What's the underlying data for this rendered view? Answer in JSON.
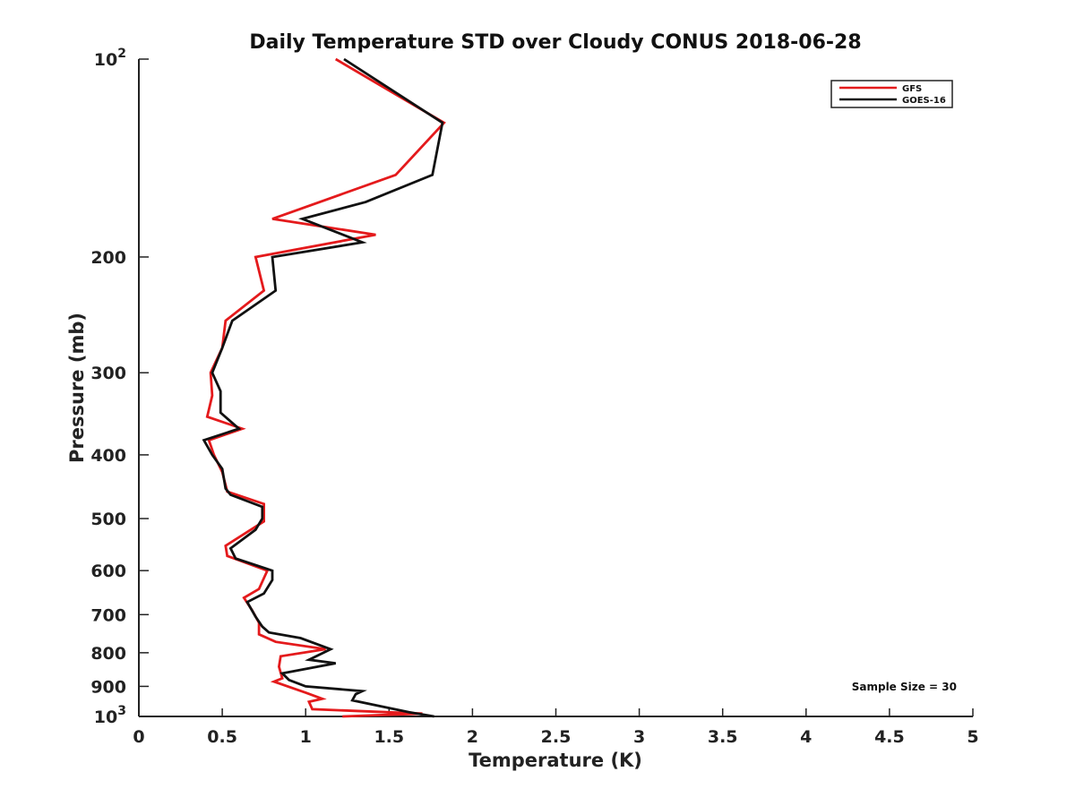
{
  "chart_data": {
    "type": "line",
    "title": "Daily Temperature STD over Cloudy CONUS 2018-06-28",
    "xlabel": "Temperature (K)",
    "ylabel": "Pressure (mb)",
    "xlim": [
      0,
      5
    ],
    "ylim": [
      100,
      1000
    ],
    "y_scale": "log",
    "y_reversed": true,
    "grid": false,
    "legend_position": "top-right",
    "x_ticks": [
      "0",
      "0.5",
      "1",
      "1.5",
      "2",
      "2.5",
      "3",
      "3.5",
      "4",
      "4.5",
      "5"
    ],
    "y_ticks": [
      {
        "value": 100,
        "base": "10",
        "exp": "2"
      },
      {
        "value": 200,
        "label": "200"
      },
      {
        "value": 300,
        "label": "300"
      },
      {
        "value": 400,
        "label": "400"
      },
      {
        "value": 500,
        "label": "500"
      },
      {
        "value": 600,
        "label": "600"
      },
      {
        "value": 700,
        "label": "700"
      },
      {
        "value": 800,
        "label": "800"
      },
      {
        "value": 900,
        "label": "900"
      },
      {
        "value": 1000,
        "base": "10",
        "exp": "3"
      }
    ],
    "annotation": "Sample Size = 30",
    "series": [
      {
        "name": "GFS",
        "color": "#e41a1c",
        "points": [
          [
            1.18,
            100
          ],
          [
            1.83,
            125
          ],
          [
            1.54,
            150
          ],
          [
            0.8,
            175
          ],
          [
            1.42,
            185
          ],
          [
            0.7,
            200
          ],
          [
            0.75,
            225
          ],
          [
            0.52,
            250
          ],
          [
            0.5,
            275
          ],
          [
            0.43,
            300
          ],
          [
            0.44,
            325
          ],
          [
            0.41,
            350
          ],
          [
            0.62,
            365
          ],
          [
            0.42,
            380
          ],
          [
            0.45,
            400
          ],
          [
            0.5,
            425
          ],
          [
            0.53,
            455
          ],
          [
            0.75,
            475
          ],
          [
            0.75,
            505
          ],
          [
            0.52,
            550
          ],
          [
            0.53,
            570
          ],
          [
            0.77,
            600
          ],
          [
            0.72,
            640
          ],
          [
            0.63,
            660
          ],
          [
            0.68,
            690
          ],
          [
            0.72,
            720
          ],
          [
            0.72,
            750
          ],
          [
            0.82,
            770
          ],
          [
            1.12,
            790
          ],
          [
            0.85,
            810
          ],
          [
            0.84,
            840
          ],
          [
            0.86,
            875
          ],
          [
            0.81,
            885
          ],
          [
            1.0,
            920
          ],
          [
            1.1,
            940
          ],
          [
            1.02,
            950
          ],
          [
            1.04,
            975
          ],
          [
            1.7,
            990
          ],
          [
            1.22,
            1000
          ]
        ]
      },
      {
        "name": "GOES-16",
        "color": "#111111",
        "points": [
          [
            1.23,
            100
          ],
          [
            1.82,
            125
          ],
          [
            1.76,
            150
          ],
          [
            1.36,
            165
          ],
          [
            0.98,
            175
          ],
          [
            1.34,
            190
          ],
          [
            0.8,
            200
          ],
          [
            0.82,
            225
          ],
          [
            0.56,
            250
          ],
          [
            0.5,
            275
          ],
          [
            0.44,
            300
          ],
          [
            0.49,
            320
          ],
          [
            0.49,
            345
          ],
          [
            0.6,
            365
          ],
          [
            0.39,
            380
          ],
          [
            0.44,
            400
          ],
          [
            0.5,
            420
          ],
          [
            0.52,
            450
          ],
          [
            0.55,
            460
          ],
          [
            0.74,
            480
          ],
          [
            0.74,
            500
          ],
          [
            0.7,
            520
          ],
          [
            0.55,
            555
          ],
          [
            0.58,
            575
          ],
          [
            0.8,
            600
          ],
          [
            0.8,
            620
          ],
          [
            0.75,
            650
          ],
          [
            0.65,
            670
          ],
          [
            0.7,
            705
          ],
          [
            0.74,
            730
          ],
          [
            0.78,
            745
          ],
          [
            0.97,
            760
          ],
          [
            1.15,
            790
          ],
          [
            1.02,
            820
          ],
          [
            1.18,
            830
          ],
          [
            0.86,
            860
          ],
          [
            0.9,
            880
          ],
          [
            1.0,
            900
          ],
          [
            1.34,
            915
          ],
          [
            1.3,
            925
          ],
          [
            1.28,
            945
          ],
          [
            1.62,
            985
          ],
          [
            1.77,
            1000
          ]
        ]
      }
    ]
  }
}
